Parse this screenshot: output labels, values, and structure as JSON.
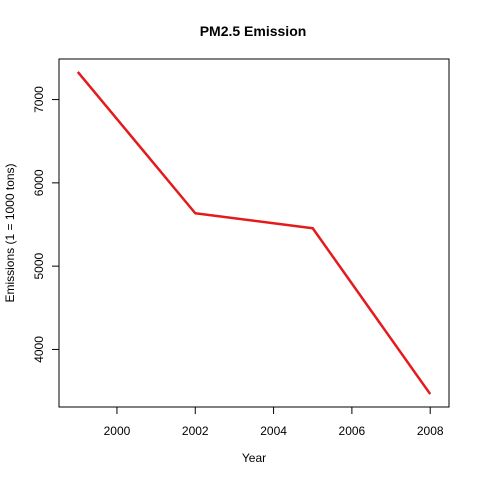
{
  "chart_data": {
    "type": "line",
    "title": "PM2.5 Emission",
    "xlabel": "Year",
    "ylabel": "Emissions (1 = 1000 tons)",
    "x": [
      1999,
      2002,
      2005,
      2008
    ],
    "series": [
      {
        "name": "Emissions",
        "values": [
          7332,
          5635,
          5455,
          3464
        ],
        "color": "#e41a1c"
      }
    ],
    "xticks": [
      2000,
      2002,
      2004,
      2006,
      2008
    ],
    "yticks": [
      4000,
      5000,
      6000,
      7000
    ],
    "xlim": [
      1998.52,
      2008.48
    ],
    "ylim": [
      3309,
      7487
    ],
    "grid": false,
    "legend": "none"
  }
}
